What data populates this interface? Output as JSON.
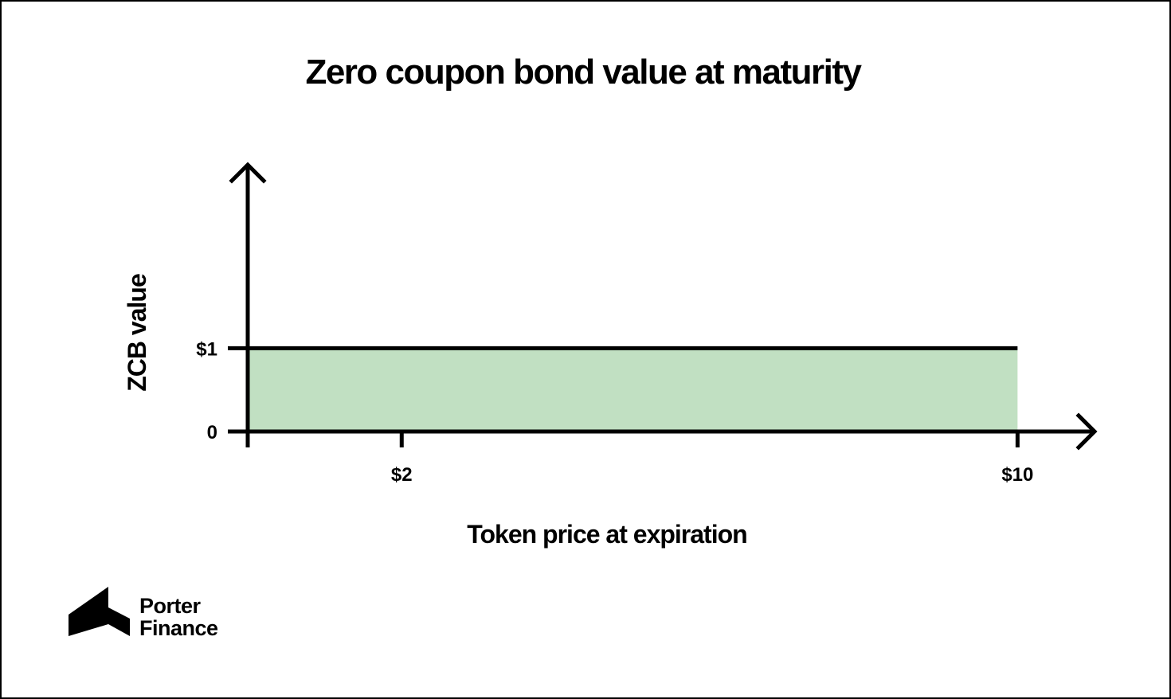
{
  "chart_data": {
    "type": "area",
    "title": "Zero coupon bond value at maturity",
    "xlabel": "Token price at expiration",
    "ylabel": "ZCB value",
    "x_ticks": [
      {
        "value": 2,
        "label": "$2"
      },
      {
        "value": 10,
        "label": "$10"
      }
    ],
    "y_ticks": [
      {
        "value": 0,
        "label": "0"
      },
      {
        "value": 1,
        "label": "$1"
      }
    ],
    "xlim": [
      0,
      11
    ],
    "ylim": [
      0,
      3.2
    ],
    "series": [
      {
        "name": "ZCB value",
        "x": [
          0,
          10
        ],
        "y": [
          1,
          1
        ],
        "fill_to_zero": true
      }
    ],
    "grid": false,
    "colors": {
      "fill": "#c1e0c2",
      "line": "#000000",
      "axis": "#000000",
      "background": "#ffffff"
    }
  },
  "brand": {
    "line1": "Porter",
    "line2": "Finance",
    "logo_icon": "porter-finance-logo-icon"
  }
}
